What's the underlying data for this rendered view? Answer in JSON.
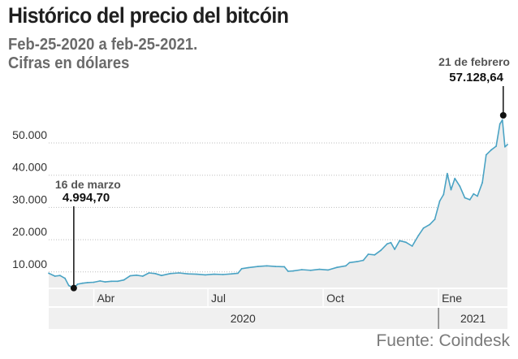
{
  "header": {
    "title": "Histórico del precio del bitcóin",
    "subtitle_line1": "Feb-25-2020 a feb-25-2021.",
    "subtitle_line2": "Cifras en dólares"
  },
  "footer": {
    "source": "Fuente: Coindesk"
  },
  "colors": {
    "line": "#4aa3c4",
    "area": "#ededed",
    "grid": "#bdbdbd",
    "axis_band": "#f0f0f0",
    "marker": "#111111"
  },
  "chart_data": {
    "type": "area",
    "xlabel": "",
    "ylabel": "",
    "ylim": [
      5000,
      58000
    ],
    "xlim": [
      "2020-02-25",
      "2021-02-25"
    ],
    "grid": true,
    "y_ticks": [
      10000,
      20000,
      30000,
      40000,
      50000
    ],
    "y_tick_labels": [
      "10.000",
      "20.000",
      "30.000",
      "40.000",
      "50.000"
    ],
    "month_ticks": [
      {
        "date": "2020-04-01",
        "label": "Abr"
      },
      {
        "date": "2020-07-01",
        "label": "Jul"
      },
      {
        "date": "2020-10-01",
        "label": "Oct"
      },
      {
        "date": "2021-01-01",
        "label": "Ene"
      }
    ],
    "year_labels": [
      {
        "label": "2020",
        "from": "2020-02-25",
        "to": "2020-12-31"
      },
      {
        "label": "2021",
        "from": "2021-01-01",
        "to": "2021-02-25"
      }
    ],
    "series": [
      {
        "x": [
          "2020-02-25",
          "2020-03-01",
          "2020-03-05",
          "2020-03-09",
          "2020-03-12",
          "2020-03-13",
          "2020-03-16",
          "2020-03-19",
          "2020-03-23",
          "2020-03-27",
          "2020-04-01",
          "2020-04-06",
          "2020-04-10",
          "2020-04-15",
          "2020-04-20",
          "2020-04-25",
          "2020-04-30",
          "2020-05-05",
          "2020-05-10",
          "2020-05-15",
          "2020-05-20",
          "2020-05-25",
          "2020-06-01",
          "2020-06-08",
          "2020-06-15",
          "2020-06-22",
          "2020-06-29",
          "2020-07-06",
          "2020-07-13",
          "2020-07-20",
          "2020-07-25",
          "2020-07-28",
          "2020-08-02",
          "2020-08-10",
          "2020-08-17",
          "2020-08-24",
          "2020-08-31",
          "2020-09-03",
          "2020-09-07",
          "2020-09-14",
          "2020-09-21",
          "2020-09-28",
          "2020-10-05",
          "2020-10-12",
          "2020-10-19",
          "2020-10-22",
          "2020-10-28",
          "2020-11-02",
          "2020-11-06",
          "2020-11-11",
          "2020-11-16",
          "2020-11-21",
          "2020-11-24",
          "2020-11-27",
          "2020-12-01",
          "2020-12-06",
          "2020-12-11",
          "2020-12-16",
          "2020-12-20",
          "2020-12-25",
          "2020-12-29",
          "2021-01-02",
          "2021-01-05",
          "2021-01-08",
          "2021-01-11",
          "2021-01-14",
          "2021-01-18",
          "2021-01-22",
          "2021-01-26",
          "2021-01-29",
          "2021-02-01",
          "2021-02-05",
          "2021-02-08",
          "2021-02-12",
          "2021-02-16",
          "2021-02-19",
          "2021-02-21",
          "2021-02-23",
          "2021-02-25"
        ],
        "values": [
          9600,
          8700,
          8900,
          8000,
          5800,
          5600,
          4994.7,
          6200,
          6500,
          6700,
          6800,
          7200,
          6900,
          7100,
          7100,
          7500,
          8800,
          9000,
          8700,
          9700,
          9500,
          8900,
          9500,
          9700,
          9400,
          9300,
          9100,
          9300,
          9200,
          9400,
          9600,
          11000,
          11300,
          11700,
          11900,
          11700,
          11600,
          10200,
          10300,
          10700,
          10500,
          10800,
          10600,
          11400,
          11900,
          12900,
          13200,
          13600,
          15500,
          15300,
          16700,
          18700,
          19100,
          17000,
          19700,
          19200,
          18000,
          21300,
          23600,
          24700,
          26300,
          32000,
          34000,
          40500,
          35500,
          39000,
          36600,
          33000,
          32400,
          34200,
          33500,
          37700,
          46300,
          47800,
          49000,
          55900,
          57128.64,
          48800,
          49500
        ]
      }
    ],
    "annotations": [
      {
        "date": "2020-03-16",
        "label": "16 de marzo",
        "value": 4994.7,
        "value_label": "4.994,70"
      },
      {
        "date": "2021-02-21",
        "label": "21 de febrero",
        "value": 57128.64,
        "value_label": "57.128,64"
      }
    ]
  }
}
